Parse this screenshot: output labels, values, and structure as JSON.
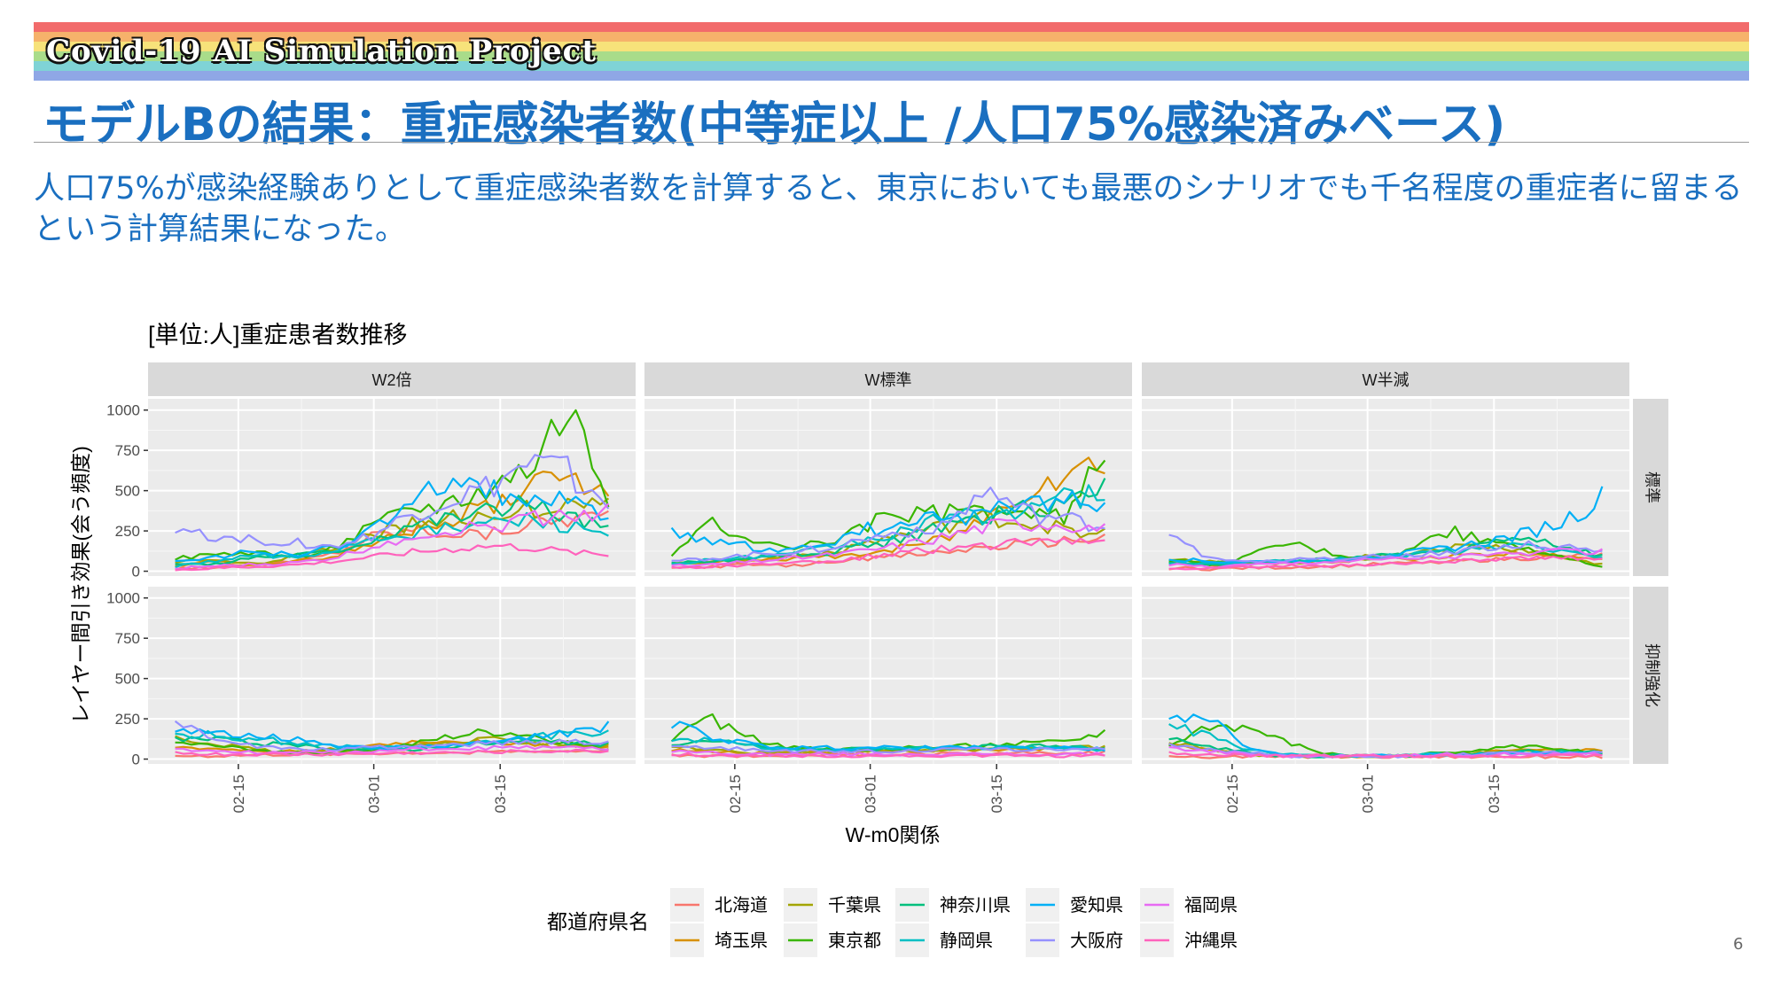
{
  "header": {
    "project_title": "Covid-19 AI Simulation Project",
    "slide_title": "モデルBの結果：重症感染者数(中等症以上 /人口75%感染済みベース)",
    "body_text": "人口75%が感染経験ありとして重症感染者数を計算すると、東京においても最悪のシナリオでも千名程度の重症者に留まるという計算結果になった。",
    "page_number": "6"
  },
  "theme": {
    "title_color": "#1a6fc0",
    "rainbow": [
      "#f26b6b",
      "#f6b26b",
      "#f7e27a",
      "#a9dc8a",
      "#7fd3d6",
      "#8fa7e6"
    ]
  },
  "chart_data": {
    "type": "line",
    "title": "[単位:人]重症患者数推移",
    "xlabel": "W-m0関係",
    "ylabel": "レイヤー間引き効果(会う頻度)",
    "facet_columns": [
      "W2倍",
      "W標準",
      "W半減"
    ],
    "facet_rows": [
      "標準",
      "抑制強化"
    ],
    "x_tick_labels": [
      "02-15",
      "03-01",
      "03-15"
    ],
    "x_range": [
      "02-05",
      "03-30"
    ],
    "y_ticks": [
      0,
      250,
      500,
      750,
      1000
    ],
    "ylim": [
      -30,
      1070
    ],
    "grid": true,
    "legend_title": "都道府県名",
    "legend_position": "bottom",
    "series": [
      {
        "name": "北海道",
        "color": "#F8766D"
      },
      {
        "name": "埼玉県",
        "color": "#D89000"
      },
      {
        "name": "千葉県",
        "color": "#A3A500"
      },
      {
        "name": "東京都",
        "color": "#39B600"
      },
      {
        "name": "神奈川県",
        "color": "#00BF7D"
      },
      {
        "name": "静岡県",
        "color": "#00BFC4"
      },
      {
        "name": "愛知県",
        "color": "#00B0F6"
      },
      {
        "name": "大阪府",
        "color": "#9590FF"
      },
      {
        "name": "福岡県",
        "color": "#E76BF3"
      },
      {
        "name": "沖縄県",
        "color": "#FF62BC"
      }
    ],
    "panels": [
      {
        "row": 0,
        "col": 0,
        "keys": [
          0,
          0,
          0.08,
          0.04,
          0.15,
          0.35,
          0.95,
          0.78,
          0.42,
          0.2
        ],
        "sample": [
          [
            20,
            25,
            40,
            60,
            110,
            220,
            260,
            240,
            230,
            300,
            330,
            350
          ],
          [
            40,
            60,
            30,
            70,
            90,
            180,
            260,
            330,
            410,
            500,
            600,
            520
          ],
          [
            60,
            80,
            40,
            90,
            150,
            230,
            300,
            330,
            350,
            380,
            400,
            420
          ],
          [
            80,
            100,
            120,
            90,
            140,
            270,
            380,
            420,
            520,
            640,
            1020,
            440
          ],
          [
            50,
            40,
            90,
            100,
            120,
            200,
            300,
            330,
            380,
            410,
            340,
            260
          ],
          [
            30,
            60,
            100,
            80,
            130,
            210,
            240,
            260,
            300,
            320,
            280,
            240
          ],
          [
            70,
            90,
            120,
            100,
            140,
            260,
            380,
            600,
            490,
            450,
            420,
            300
          ],
          [
            260,
            220,
            200,
            180,
            150,
            220,
            350,
            440,
            520,
            660,
            620,
            420
          ],
          [
            20,
            30,
            40,
            50,
            80,
            150,
            220,
            250,
            280,
            320,
            360,
            380
          ],
          [
            10,
            20,
            30,
            40,
            60,
            90,
            120,
            140,
            160,
            150,
            120,
            100
          ]
        ]
      },
      {
        "row": 0,
        "col": 1,
        "keys": [
          0
        ],
        "sample": [
          [
            20,
            30,
            40,
            30,
            60,
            80,
            100,
            120,
            150,
            170,
            190,
            210
          ],
          [
            40,
            60,
            70,
            80,
            90,
            110,
            150,
            210,
            330,
            520,
            620,
            660
          ],
          [
            50,
            60,
            80,
            90,
            120,
            180,
            230,
            280,
            330,
            300,
            260,
            240
          ],
          [
            90,
            300,
            200,
            150,
            180,
            300,
            350,
            360,
            380,
            350,
            340,
            740
          ],
          [
            50,
            60,
            80,
            100,
            120,
            160,
            210,
            280,
            330,
            380,
            420,
            520
          ],
          [
            40,
            70,
            90,
            100,
            150,
            200,
            250,
            330,
            350,
            400,
            450,
            470
          ],
          [
            250,
            200,
            150,
            140,
            170,
            260,
            300,
            320,
            360,
            420,
            450,
            380
          ],
          [
            60,
            80,
            100,
            120,
            150,
            200,
            250,
            300,
            500,
            360,
            320,
            280
          ],
          [
            30,
            40,
            60,
            80,
            100,
            130,
            170,
            220,
            280,
            300,
            300,
            260
          ],
          [
            20,
            30,
            40,
            50,
            60,
            90,
            120,
            140,
            160,
            180,
            200,
            200
          ]
        ]
      },
      {
        "row": 0,
        "col": 2,
        "keys": [
          0
        ],
        "sample": [
          [
            20,
            15,
            20,
            25,
            30,
            40,
            50,
            60,
            70,
            80,
            90,
            100
          ],
          [
            60,
            40,
            40,
            50,
            60,
            70,
            80,
            90,
            100,
            110,
            100,
            80
          ],
          [
            80,
            60,
            50,
            50,
            70,
            90,
            120,
            140,
            150,
            130,
            80,
            40
          ],
          [
            70,
            40,
            90,
            180,
            120,
            80,
            120,
            250,
            200,
            160,
            80,
            30
          ],
          [
            60,
            40,
            50,
            60,
            80,
            90,
            100,
            120,
            160,
            210,
            150,
            90
          ],
          [
            50,
            40,
            60,
            60,
            70,
            80,
            100,
            120,
            140,
            160,
            120,
            90
          ],
          [
            80,
            60,
            60,
            60,
            70,
            90,
            110,
            140,
            180,
            230,
            310,
            460
          ],
          [
            250,
            80,
            60,
            70,
            80,
            90,
            100,
            120,
            140,
            160,
            150,
            130
          ],
          [
            40,
            30,
            40,
            50,
            60,
            70,
            80,
            90,
            100,
            110,
            120,
            120
          ],
          [
            20,
            20,
            25,
            30,
            35,
            40,
            50,
            60,
            70,
            80,
            80,
            80
          ]
        ]
      },
      {
        "row": 1,
        "col": 0,
        "keys": [
          0
        ],
        "sample": [
          [
            20,
            20,
            25,
            30,
            30,
            35,
            40,
            40,
            45,
            50,
            50,
            55
          ],
          [
            70,
            60,
            50,
            50,
            60,
            80,
            100,
            110,
            100,
            90,
            80,
            80
          ],
          [
            140,
            100,
            60,
            40,
            40,
            60,
            80,
            100,
            120,
            110,
            90,
            80
          ],
          [
            100,
            80,
            60,
            40,
            40,
            60,
            90,
            140,
            170,
            150,
            100,
            60
          ],
          [
            130,
            120,
            100,
            80,
            70,
            60,
            60,
            80,
            100,
            110,
            100,
            90
          ],
          [
            150,
            150,
            130,
            100,
            80,
            70,
            70,
            80,
            100,
            130,
            160,
            180
          ],
          [
            160,
            160,
            150,
            120,
            90,
            70,
            70,
            80,
            100,
            130,
            170,
            200
          ],
          [
            220,
            140,
            80,
            60,
            60,
            70,
            80,
            90,
            100,
            110,
            110,
            110
          ],
          [
            60,
            50,
            40,
            40,
            40,
            50,
            60,
            60,
            70,
            70,
            70,
            70
          ],
          [
            40,
            30,
            30,
            30,
            30,
            35,
            40,
            40,
            45,
            50,
            50,
            50
          ]
        ]
      },
      {
        "row": 1,
        "col": 1,
        "keys": [
          0
        ],
        "sample": [
          [
            20,
            20,
            20,
            25,
            25,
            30,
            30,
            35,
            35,
            40,
            40,
            40
          ],
          [
            60,
            50,
            40,
            40,
            40,
            45,
            50,
            55,
            60,
            65,
            70,
            70
          ],
          [
            90,
            60,
            40,
            40,
            40,
            50,
            55,
            60,
            65,
            70,
            75,
            70
          ],
          [
            130,
            250,
            130,
            70,
            60,
            60,
            70,
            80,
            90,
            100,
            110,
            180
          ],
          [
            100,
            120,
            80,
            60,
            60,
            60,
            70,
            70,
            80,
            80,
            80,
            80
          ],
          [
            130,
            110,
            80,
            60,
            60,
            60,
            60,
            70,
            70,
            70,
            70,
            60
          ],
          [
            220,
            140,
            90,
            70,
            70,
            70,
            70,
            70,
            70,
            70,
            70,
            60
          ],
          [
            90,
            70,
            60,
            50,
            50,
            50,
            50,
            60,
            60,
            60,
            60,
            60
          ],
          [
            50,
            40,
            30,
            30,
            30,
            30,
            30,
            30,
            30,
            30,
            30,
            30
          ],
          [
            30,
            25,
            20,
            20,
            20,
            20,
            20,
            20,
            20,
            20,
            20,
            20
          ]
        ]
      },
      {
        "row": 1,
        "col": 2,
        "keys": [
          0
        ],
        "sample": [
          [
            20,
            15,
            15,
            15,
            15,
            15,
            15,
            15,
            15,
            15,
            15,
            15
          ],
          [
            90,
            60,
            30,
            20,
            20,
            20,
            20,
            30,
            40,
            60,
            60,
            50
          ],
          [
            100,
            60,
            30,
            20,
            20,
            20,
            20,
            30,
            40,
            50,
            50,
            40
          ],
          [
            80,
            200,
            190,
            100,
            30,
            20,
            20,
            40,
            60,
            80,
            60,
            40
          ],
          [
            120,
            80,
            40,
            20,
            20,
            20,
            20,
            30,
            40,
            50,
            50,
            40
          ],
          [
            210,
            140,
            60,
            30,
            20,
            20,
            20,
            30,
            30,
            40,
            40,
            40
          ],
          [
            240,
            250,
            70,
            30,
            20,
            20,
            20,
            30,
            30,
            40,
            40,
            30
          ],
          [
            90,
            60,
            40,
            20,
            20,
            20,
            20,
            30,
            30,
            40,
            40,
            40
          ],
          [
            70,
            50,
            30,
            20,
            20,
            20,
            20,
            30,
            30,
            30,
            30,
            30
          ],
          [
            40,
            30,
            20,
            20,
            20,
            20,
            20,
            20,
            20,
            20,
            20,
            20
          ]
        ]
      }
    ]
  }
}
